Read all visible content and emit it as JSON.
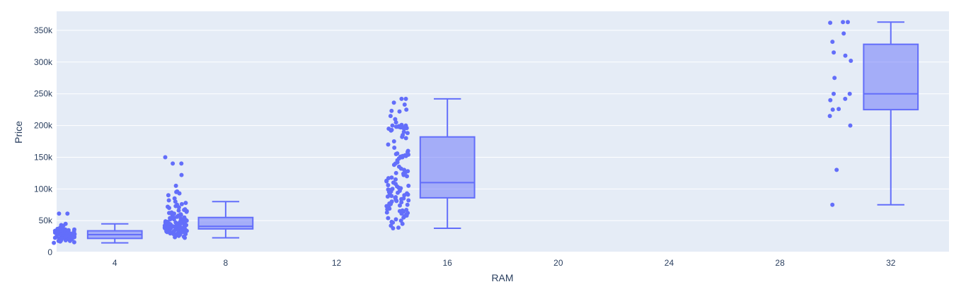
{
  "chart_data": {
    "type": "box",
    "title": "",
    "xlabel": "RAM",
    "ylabel": "Price",
    "xlim": [
      1.9,
      34.1
    ],
    "ylim": [
      -1000,
      380000
    ],
    "x_ticks": [
      4,
      8,
      12,
      16,
      20,
      24,
      28,
      32
    ],
    "y_ticks": [
      0,
      50000,
      100000,
      150000,
      200000,
      250000,
      300000,
      350000
    ],
    "y_tick_labels": [
      "0",
      "50k",
      "100k",
      "150k",
      "200k",
      "250k",
      "300k",
      "350k"
    ],
    "grid": true,
    "legend": "none",
    "colors": {
      "plot_bg": "#e5ecf6",
      "grid": "#ffffff",
      "box_fill": "#636efa",
      "box_fill_opacity": 0.5,
      "box_line": "#636efa",
      "point": "#636efa",
      "text": "#2a3f5f"
    },
    "boxes": [
      {
        "x": 4,
        "min": 15000,
        "q1": 22000,
        "median": 28000,
        "q3": 34000,
        "max": 45000,
        "points": [
          15000,
          16000,
          17000,
          18000,
          18000,
          19000,
          19000,
          20000,
          20000,
          20000,
          21000,
          21000,
          21000,
          22000,
          22000,
          22000,
          23000,
          23000,
          23000,
          24000,
          24000,
          24000,
          25000,
          25000,
          25000,
          25000,
          26000,
          26000,
          26000,
          27000,
          27000,
          27000,
          28000,
          28000,
          28000,
          28000,
          29000,
          29000,
          29000,
          30000,
          30000,
          30000,
          31000,
          31000,
          31000,
          32000,
          32000,
          33000,
          33000,
          34000,
          34000,
          35000,
          35000,
          36000,
          36000,
          37000,
          38000,
          39000,
          40000,
          42000,
          43000,
          45000,
          61000,
          61000
        ]
      },
      {
        "x": 8,
        "min": 23000,
        "q1": 37000,
        "median": 41000,
        "q3": 55000,
        "max": 80000,
        "points": [
          23000,
          24000,
          25000,
          26000,
          27000,
          27000,
          28000,
          28000,
          29000,
          29000,
          30000,
          30000,
          30000,
          31000,
          31000,
          31000,
          32000,
          32000,
          32000,
          33000,
          33000,
          33000,
          34000,
          34000,
          34000,
          35000,
          35000,
          35000,
          35000,
          36000,
          36000,
          36000,
          36000,
          37000,
          37000,
          37000,
          37000,
          38000,
          38000,
          38000,
          38000,
          39000,
          39000,
          39000,
          39000,
          40000,
          40000,
          40000,
          40000,
          40000,
          41000,
          41000,
          41000,
          41000,
          42000,
          42000,
          42000,
          42000,
          43000,
          43000,
          43000,
          43000,
          44000,
          44000,
          44000,
          45000,
          45000,
          45000,
          45000,
          46000,
          46000,
          46000,
          47000,
          47000,
          47000,
          48000,
          48000,
          48000,
          49000,
          49000,
          50000,
          50000,
          50000,
          51000,
          51000,
          52000,
          52000,
          53000,
          53000,
          54000,
          54000,
          55000,
          55000,
          56000,
          57000,
          58000,
          59000,
          60000,
          60000,
          61000,
          62000,
          63000,
          64000,
          65000,
          66000,
          67000,
          68000,
          70000,
          71000,
          72000,
          73000,
          75000,
          76000,
          78000,
          80000,
          82000,
          85000,
          90000,
          93000,
          95000,
          96000,
          105000,
          122000,
          140000,
          140000,
          150000
        ]
      },
      {
        "x": 16,
        "min": 38000,
        "q1": 86000,
        "median": 110000,
        "q3": 182000,
        "max": 242000,
        "points": [
          38000,
          39000,
          42000,
          45000,
          47000,
          48000,
          50000,
          52000,
          54000,
          55000,
          57000,
          58000,
          60000,
          61000,
          62000,
          63000,
          64000,
          65000,
          66000,
          67000,
          68000,
          69000,
          70000,
          71000,
          72000,
          73000,
          74000,
          75000,
          76000,
          77000,
          78000,
          79000,
          80000,
          81000,
          82000,
          83000,
          84000,
          85000,
          86000,
          87000,
          88000,
          89000,
          90000,
          91000,
          92000,
          93000,
          94000,
          95000,
          96000,
          97000,
          98000,
          99000,
          100000,
          101000,
          102000,
          104000,
          105000,
          106000,
          108000,
          110000,
          112000,
          113000,
          115000,
          117000,
          118000,
          120000,
          122000,
          124000,
          125000,
          126000,
          128000,
          130000,
          132000,
          135000,
          138000,
          140000,
          142000,
          145000,
          148000,
          150000,
          150000,
          151000,
          152000,
          152000,
          153000,
          154000,
          155000,
          156000,
          158000,
          160000,
          165000,
          170000,
          175000,
          180000,
          182000,
          185000,
          188000,
          190000,
          192000,
          193000,
          195000,
          195000,
          196000,
          196000,
          197000,
          197000,
          198000,
          198000,
          199000,
          199000,
          200000,
          200000,
          201000,
          205000,
          210000,
          215000,
          222000,
          223000,
          225000,
          233000,
          236000,
          242000,
          242000
        ]
      },
      {
        "x": 32,
        "min": 75000,
        "q1": 225000,
        "median": 250000,
        "q3": 328000,
        "max": 363000,
        "points": [
          75000,
          130000,
          200000,
          215000,
          225000,
          226000,
          240000,
          242000,
          250000,
          250000,
          275000,
          302000,
          310000,
          315000,
          332000,
          345000,
          362000,
          363000,
          363000
        ]
      }
    ]
  }
}
